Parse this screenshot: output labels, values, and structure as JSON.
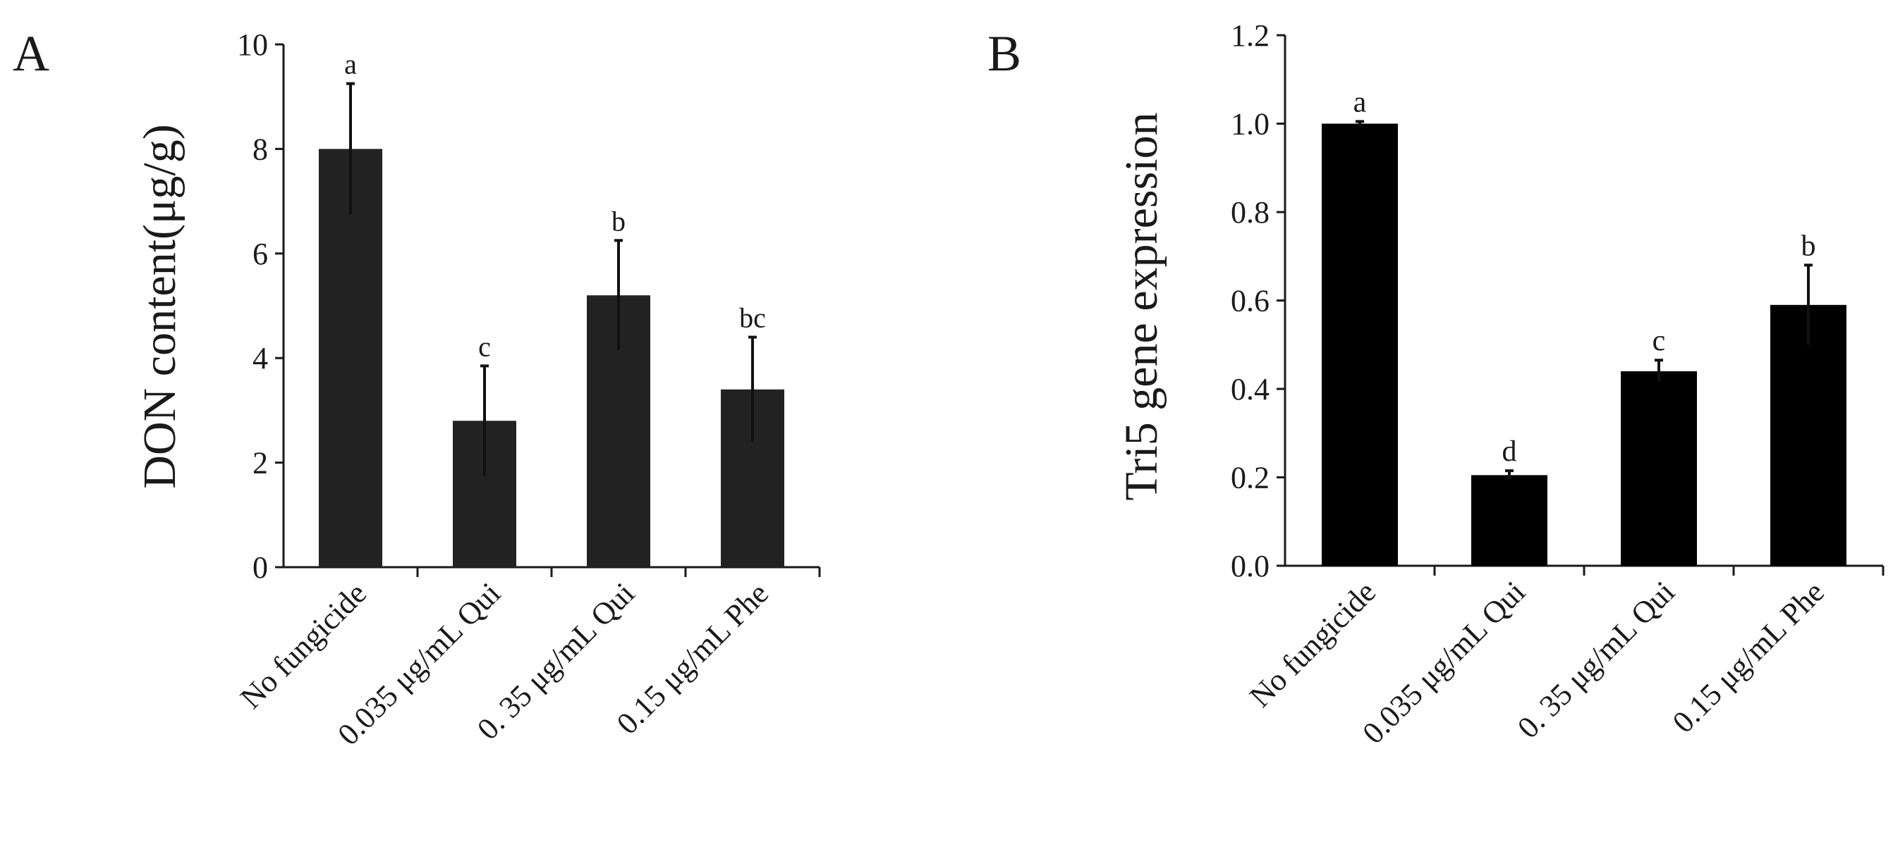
{
  "chart_data": [
    {
      "type": "bar",
      "panel_label": "A",
      "title": "",
      "xlabel": "",
      "ylabel": "DON content(μg/g)",
      "ylim": [
        0,
        10
      ],
      "yticks": [
        0,
        2,
        4,
        6,
        8,
        10
      ],
      "ytick_labels": [
        "0",
        "2",
        "4",
        "6",
        "8",
        "10"
      ],
      "categories": [
        "No fungicide",
        "0.035 μg/mL Qui",
        "0. 35 μg/mL Qui",
        "0.15 μg/mL Phe"
      ],
      "values": [
        8.0,
        2.8,
        5.2,
        3.4
      ],
      "errors": [
        1.25,
        1.05,
        1.05,
        1.0
      ],
      "significance": [
        "a",
        "c",
        "b",
        "bc"
      ],
      "bar_color": "#222222",
      "grid": false
    },
    {
      "type": "bar",
      "panel_label": "B",
      "title": "",
      "xlabel": "",
      "ylabel": "Tri5 gene expression",
      "ylim": [
        0,
        1.2
      ],
      "yticks": [
        0,
        0.2,
        0.4,
        0.6,
        0.8,
        1.0,
        1.2
      ],
      "ytick_labels": [
        "0.0",
        "0.2",
        "0.4",
        "0.6",
        "0.8",
        "1.0",
        "1.2"
      ],
      "categories": [
        "No fungicide",
        "0.035 μg/mL Qui",
        "0. 35 μg/mL Qui",
        "0.15 μg/mL Phe"
      ],
      "values": [
        1.0,
        0.205,
        0.44,
        0.59
      ],
      "errors": [
        0.005,
        0.01,
        0.025,
        0.09
      ],
      "significance": [
        "a",
        "d",
        "c",
        "b"
      ],
      "bar_color": "#000000",
      "grid": false
    }
  ]
}
